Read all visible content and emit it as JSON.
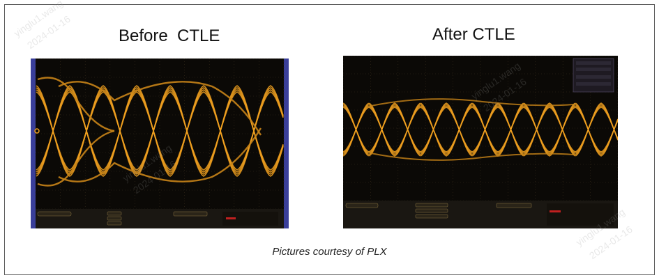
{
  "panels": [
    {
      "title": "Before  CTLE"
    },
    {
      "title": "After CTLE"
    }
  ],
  "caption": "Pictures courtesy of PLX",
  "colors": {
    "trace": "#f0a020",
    "trace_dim": "#c88418",
    "screen": "#0b0906",
    "grid": "#3a2e1c",
    "bezel": "#3a3f9a",
    "frame": "#5a5a5a"
  },
  "watermark": {
    "name": "yinglu1.wang",
    "date": "2024-01-16"
  }
}
